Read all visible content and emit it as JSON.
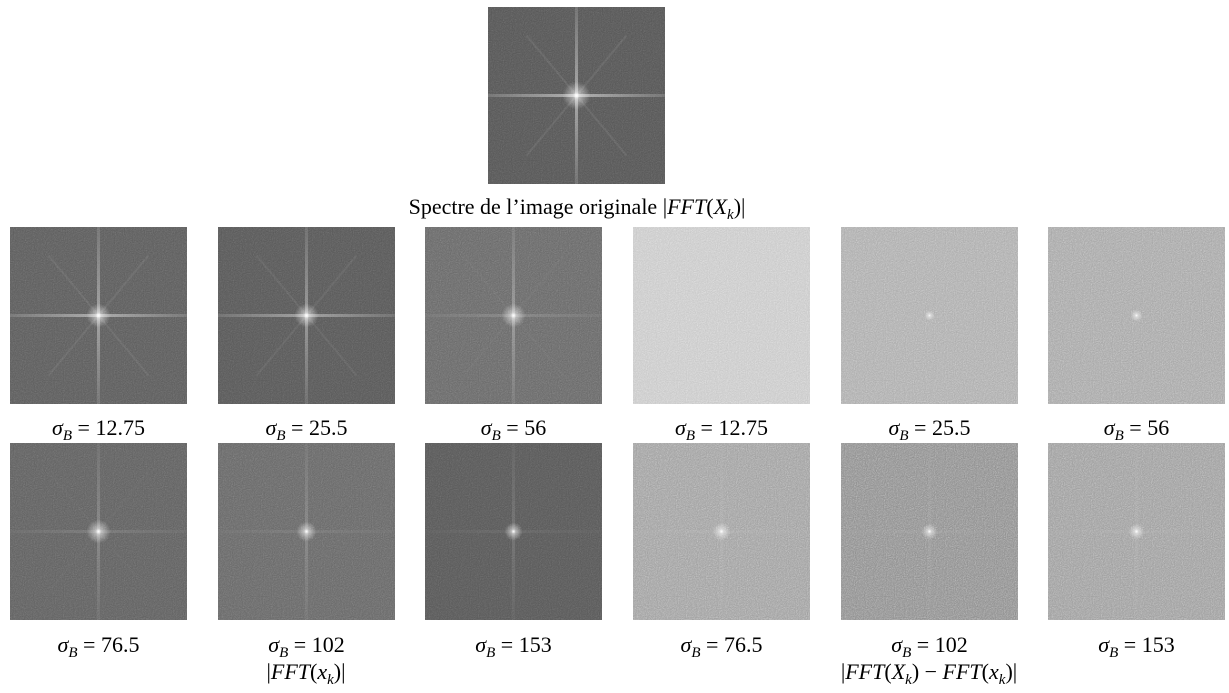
{
  "header": {
    "caption": [
      {
        "text": "Spectre de l’image originale |",
        "style": "roman"
      },
      {
        "text": "FFT",
        "style": "math"
      },
      {
        "text": "(",
        "style": "roman"
      },
      {
        "text": "X",
        "style": "math"
      },
      {
        "text": "k",
        "style": "sub"
      },
      {
        "text": ")|",
        "style": "roman"
      }
    ]
  },
  "panels": [
    [
      {
        "label": [
          {
            "text": "σ",
            "style": "math"
          },
          {
            "text": "B",
            "style": "sub"
          },
          {
            "text": " = 12.75",
            "style": "roman"
          }
        ]
      },
      {
        "label": [
          {
            "text": "σ",
            "style": "math"
          },
          {
            "text": "B",
            "style": "sub"
          },
          {
            "text": " = 25.5",
            "style": "roman"
          }
        ]
      },
      {
        "label": [
          {
            "text": "σ",
            "style": "math"
          },
          {
            "text": "B",
            "style": "sub"
          },
          {
            "text": " = 56",
            "style": "roman"
          }
        ]
      },
      {
        "label": [
          {
            "text": "σ",
            "style": "math"
          },
          {
            "text": "B",
            "style": "sub"
          },
          {
            "text": " = 12.75",
            "style": "roman"
          }
        ]
      },
      {
        "label": [
          {
            "text": "σ",
            "style": "math"
          },
          {
            "text": "B",
            "style": "sub"
          },
          {
            "text": " = 25.5",
            "style": "roman"
          }
        ]
      },
      {
        "label": [
          {
            "text": "σ",
            "style": "math"
          },
          {
            "text": "B",
            "style": "sub"
          },
          {
            "text": " = 56",
            "style": "roman"
          }
        ]
      }
    ],
    [
      {
        "label": [
          {
            "text": "σ",
            "style": "math"
          },
          {
            "text": "B",
            "style": "sub"
          },
          {
            "text": " = 76.5",
            "style": "roman"
          }
        ]
      },
      {
        "label": [
          {
            "text": "σ",
            "style": "math"
          },
          {
            "text": "B",
            "style": "sub"
          },
          {
            "text": " = 102",
            "style": "roman"
          }
        ]
      },
      {
        "label": [
          {
            "text": "σ",
            "style": "math"
          },
          {
            "text": "B",
            "style": "sub"
          },
          {
            "text": " = 153",
            "style": "roman"
          }
        ]
      },
      {
        "label": [
          {
            "text": "σ",
            "style": "math"
          },
          {
            "text": "B",
            "style": "sub"
          },
          {
            "text": " = 76.5",
            "style": "roman"
          }
        ]
      },
      {
        "label": [
          {
            "text": "σ",
            "style": "math"
          },
          {
            "text": "B",
            "style": "sub"
          },
          {
            "text": " = 102",
            "style": "roman"
          }
        ]
      },
      {
        "label": [
          {
            "text": "σ",
            "style": "math"
          },
          {
            "text": "B",
            "style": "sub"
          },
          {
            "text": " = 153",
            "style": "roman"
          }
        ]
      }
    ]
  ],
  "groups": [
    {
      "caption": [
        {
          "text": "|",
          "style": "roman"
        },
        {
          "text": "FFT",
          "style": "math"
        },
        {
          "text": "(",
          "style": "roman"
        },
        {
          "text": "x",
          "style": "math"
        },
        {
          "text": "k",
          "style": "sub"
        },
        {
          "text": ")|",
          "style": "roman"
        }
      ]
    },
    {
      "caption": [
        {
          "text": "|",
          "style": "roman"
        },
        {
          "text": "FFT",
          "style": "math"
        },
        {
          "text": "(",
          "style": "roman"
        },
        {
          "text": "X",
          "style": "math"
        },
        {
          "text": "k",
          "style": "sub"
        },
        {
          "text": ") − ",
          "style": "roman"
        },
        {
          "text": "FFT",
          "style": "math"
        },
        {
          "text": "(",
          "style": "roman"
        },
        {
          "text": "x",
          "style": "math"
        },
        {
          "text": "k",
          "style": "sub"
        },
        {
          "text": ")|",
          "style": "roman"
        }
      ]
    }
  ]
}
